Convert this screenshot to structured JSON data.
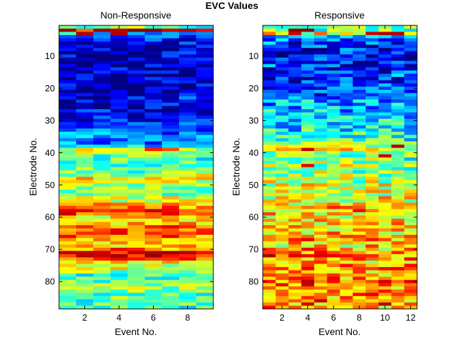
{
  "figure_title": "EVC Values",
  "chart_data": [
    {
      "type": "heatmap",
      "title": "Non-Responsive",
      "xlabel": "Event No.",
      "ylabel": "Electrode No.",
      "colormap": "jet",
      "x_range": [
        0.5,
        9.5
      ],
      "y_range": [
        0.5,
        88.5
      ],
      "xticks": [
        2,
        4,
        6,
        8
      ],
      "yticks": [
        10,
        20,
        30,
        40,
        50,
        60,
        70,
        80
      ],
      "n_events": 9,
      "n_electrodes": 88,
      "profile": [
        0.47,
        0.9,
        0.28,
        0.16,
        0.12,
        0.13,
        0.1,
        0.08,
        0.1,
        0.08,
        0.07,
        0.07,
        0.08,
        0.07,
        0.07,
        0.08,
        0.06,
        0.07,
        0.08,
        0.07,
        0.07,
        0.08,
        0.1,
        0.09,
        0.1,
        0.12,
        0.12,
        0.13,
        0.15,
        0.16,
        0.2,
        0.18,
        0.22,
        0.21,
        0.25,
        0.24,
        0.22,
        0.36,
        0.55,
        0.52,
        0.48,
        0.45,
        0.47,
        0.44,
        0.48,
        0.5,
        0.55,
        0.62,
        0.58,
        0.55,
        0.52,
        0.48,
        0.5,
        0.58,
        0.62,
        0.7,
        0.76,
        0.82,
        0.8,
        0.68,
        0.62,
        0.7,
        0.78,
        0.8,
        0.82,
        0.78,
        0.72,
        0.66,
        0.64,
        0.74,
        0.88,
        0.9,
        0.78,
        0.64,
        0.58,
        0.62,
        0.5,
        0.42,
        0.4,
        0.48,
        0.56,
        0.5,
        0.45,
        0.4,
        0.46,
        0.42,
        0.48,
        0.44
      ],
      "variation": 0.13,
      "overrides": [
        [
          3,
          2,
          0.95
        ],
        [
          3,
          4,
          0.95
        ],
        [
          39,
          6,
          0.85
        ],
        [
          39,
          7,
          0.8
        ],
        [
          72,
          2,
          0.95
        ]
      ]
    },
    {
      "type": "heatmap",
      "title": "Responsive",
      "xlabel": "Event No.",
      "ylabel": "Electrode No.",
      "colormap": "jet",
      "x_range": [
        0.5,
        12.5
      ],
      "y_range": [
        0.5,
        88.5
      ],
      "xticks": [
        2,
        4,
        6,
        8,
        10,
        12
      ],
      "yticks": [
        10,
        20,
        30,
        40,
        50,
        60,
        70,
        80
      ],
      "n_events": 12,
      "n_electrodes": 88,
      "profile": [
        0.45,
        0.5,
        0.62,
        0.3,
        0.22,
        0.18,
        0.16,
        0.15,
        0.14,
        0.12,
        0.12,
        0.14,
        0.15,
        0.15,
        0.16,
        0.17,
        0.18,
        0.19,
        0.2,
        0.22,
        0.22,
        0.24,
        0.26,
        0.28,
        0.28,
        0.3,
        0.32,
        0.34,
        0.33,
        0.35,
        0.36,
        0.38,
        0.38,
        0.4,
        0.42,
        0.44,
        0.48,
        0.55,
        0.58,
        0.52,
        0.5,
        0.48,
        0.52,
        0.55,
        0.5,
        0.52,
        0.54,
        0.56,
        0.55,
        0.58,
        0.6,
        0.58,
        0.56,
        0.6,
        0.62,
        0.64,
        0.66,
        0.68,
        0.64,
        0.62,
        0.66,
        0.68,
        0.7,
        0.66,
        0.68,
        0.7,
        0.72,
        0.66,
        0.64,
        0.7,
        0.76,
        0.78,
        0.72,
        0.7,
        0.74,
        0.76,
        0.72,
        0.7,
        0.74,
        0.78,
        0.76,
        0.72,
        0.74,
        0.76,
        0.72,
        0.74,
        0.76,
        0.72
      ],
      "variation": 0.17,
      "overrides": [
        [
          2,
          3,
          0.98
        ],
        [
          2,
          4,
          0.98
        ],
        [
          3,
          3,
          0.92
        ],
        [
          3,
          9,
          0.92
        ],
        [
          3,
          10,
          0.95
        ],
        [
          3,
          11,
          0.95
        ],
        [
          38,
          11,
          0.95
        ],
        [
          39,
          4,
          0.92
        ],
        [
          41,
          10,
          0.92
        ],
        [
          44,
          4,
          0.9
        ],
        [
          72,
          1,
          0.96
        ],
        [
          80,
          4,
          0.95
        ],
        [
          87,
          10,
          0.95
        ]
      ]
    }
  ]
}
